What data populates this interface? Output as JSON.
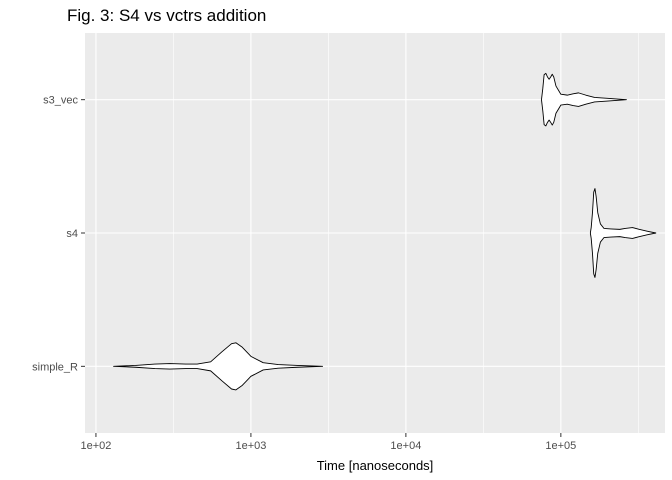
{
  "chart_data": {
    "type": "violin",
    "title": "Fig. 3: S4 vs vctrs addition",
    "xlabel": "Time [nanoseconds]",
    "ylabel": "",
    "x_scale": "log10",
    "xlim": [
      85,
      470000
    ],
    "x_ticks": [
      {
        "value": 100,
        "label": "1e+02"
      },
      {
        "value": 1000,
        "label": "1e+03"
      },
      {
        "value": 10000,
        "label": "1e+04"
      },
      {
        "value": 100000,
        "label": "1e+05"
      }
    ],
    "x_minor_ticks": [
      316.23,
      3162.28,
      31622.78,
      316227.77
    ],
    "categories": [
      "simple_R",
      "s4",
      "s3_vec"
    ],
    "grid": true,
    "legend": "none",
    "colors": {
      "panel": "#ebebeb",
      "grid": "#ffffff",
      "outline": "#000000",
      "fill": "#ffffff"
    },
    "series": [
      {
        "category": "simple_R",
        "min": 130,
        "max": 2900,
        "profile": [
          [
            130,
            0
          ],
          [
            180,
            0.02
          ],
          [
            240,
            0.05
          ],
          [
            300,
            0.06
          ],
          [
            380,
            0.05
          ],
          [
            450,
            0.05
          ],
          [
            550,
            0.1
          ],
          [
            650,
            0.32
          ],
          [
            750,
            0.5
          ],
          [
            800,
            0.52
          ],
          [
            880,
            0.42
          ],
          [
            1000,
            0.22
          ],
          [
            1200,
            0.08
          ],
          [
            1500,
            0.04
          ],
          [
            2000,
            0.02
          ],
          [
            2900,
            0
          ]
        ]
      },
      {
        "category": "s4",
        "min": 155000,
        "max": 410000,
        "profile": [
          [
            155000,
            0
          ],
          [
            157000,
            0.12
          ],
          [
            160000,
            0.45
          ],
          [
            163000,
            0.9
          ],
          [
            166000,
            0.98
          ],
          [
            169000,
            0.8
          ],
          [
            173000,
            0.45
          ],
          [
            180000,
            0.2
          ],
          [
            190000,
            0.1
          ],
          [
            210000,
            0.09
          ],
          [
            240000,
            0.08
          ],
          [
            260000,
            0.1
          ],
          [
            290000,
            0.12
          ],
          [
            320000,
            0.08
          ],
          [
            360000,
            0.04
          ],
          [
            410000,
            0
          ]
        ]
      },
      {
        "category": "s3_vec",
        "min": 75000,
        "max": 265000,
        "profile": [
          [
            75000,
            0
          ],
          [
            76500,
            0.25
          ],
          [
            78000,
            0.55
          ],
          [
            80000,
            0.58
          ],
          [
            82000,
            0.5
          ],
          [
            84000,
            0.45
          ],
          [
            86000,
            0.5
          ],
          [
            88000,
            0.56
          ],
          [
            90000,
            0.5
          ],
          [
            93000,
            0.3
          ],
          [
            100000,
            0.12
          ],
          [
            110000,
            0.1
          ],
          [
            120000,
            0.13
          ],
          [
            130000,
            0.15
          ],
          [
            145000,
            0.1
          ],
          [
            165000,
            0.05
          ],
          [
            200000,
            0.03
          ],
          [
            265000,
            0
          ]
        ]
      }
    ]
  }
}
